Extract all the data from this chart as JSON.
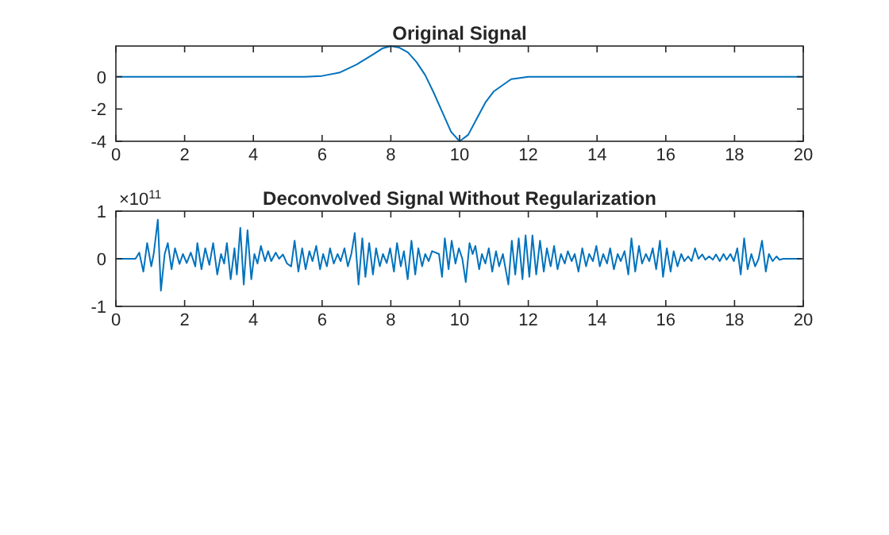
{
  "chart_data": [
    {
      "type": "line",
      "title": "Original Signal",
      "xlim": [
        0,
        20
      ],
      "xticks": [
        0,
        2,
        4,
        6,
        8,
        10,
        12,
        14,
        16,
        18,
        20
      ],
      "ylim": [
        -4,
        1.9
      ],
      "yticks": [
        -4,
        -2,
        0
      ],
      "grid": false,
      "series": [
        {
          "color": "#0072bd",
          "x": [
            0,
            2,
            4,
            5.5,
            6,
            6.5,
            7,
            7.5,
            7.75,
            8,
            8.25,
            8.5,
            8.75,
            9,
            9.25,
            9.5,
            9.75,
            10,
            10.25,
            10.5,
            10.75,
            11,
            11.5,
            12,
            14,
            16,
            18,
            20
          ],
          "values": [
            0,
            0,
            0,
            0,
            0.05,
            0.25,
            0.75,
            1.4,
            1.75,
            1.9,
            1.8,
            1.5,
            0.9,
            0.1,
            -1,
            -2.2,
            -3.4,
            -4,
            -3.6,
            -2.6,
            -1.6,
            -0.9,
            -0.15,
            0,
            0,
            0,
            0,
            0
          ]
        }
      ]
    },
    {
      "type": "line",
      "title": "Deconvolved Signal Without Regularization",
      "annotations": [
        "×10$^{11}$"
      ],
      "xlim": [
        0,
        20
      ],
      "xticks": [
        0,
        2,
        4,
        6,
        8,
        10,
        12,
        14,
        16,
        18,
        20
      ],
      "ylim": [
        -1,
        1
      ],
      "yticks": [
        -1,
        0,
        1
      ],
      "grid": false,
      "series": [
        {
          "color": "#0072bd",
          "x": [
            0,
            0.57,
            0.68,
            0.8,
            0.91,
            1.03,
            1.1,
            1.22,
            1.31,
            1.42,
            1.51,
            1.62,
            1.72,
            1.85,
            1.95,
            2.06,
            2.18,
            2.31,
            2.37,
            2.49,
            2.6,
            2.72,
            2.83,
            2.95,
            3.06,
            3.15,
            3.23,
            3.34,
            3.45,
            3.52,
            3.62,
            3.72,
            3.83,
            3.94,
            4.03,
            4.12,
            4.22,
            4.34,
            4.43,
            4.52,
            4.65,
            4.75,
            4.86,
            4.98,
            5.1,
            5.2,
            5.31,
            5.42,
            5.52,
            5.63,
            5.72,
            5.83,
            5.94,
            6.03,
            6.14,
            6.23,
            6.34,
            6.45,
            6.54,
            6.65,
            6.75,
            6.85,
            6.95,
            7.06,
            7.17,
            7.26,
            7.37,
            7.48,
            7.57,
            7.68,
            7.77,
            7.88,
            7.98,
            8.09,
            8.18,
            8.29,
            8.38,
            8.49,
            8.6,
            8.71,
            8.8,
            8.91,
            9,
            9.1,
            9.2,
            9.4,
            9.49,
            9.57,
            9.68,
            9.77,
            9.88,
            9.98,
            10.08,
            10.18,
            10.29,
            10.38,
            10.46,
            10.57,
            10.65,
            10.75,
            10.85,
            10.95,
            11.06,
            11.15,
            11.26,
            11.42,
            11.52,
            11.62,
            11.72,
            11.83,
            11.92,
            12.03,
            12.12,
            12.23,
            12.34,
            12.45,
            12.54,
            12.65,
            12.75,
            12.85,
            12.95,
            13.06,
            13.15,
            13.26,
            13.35,
            13.46,
            13.57,
            13.68,
            13.77,
            13.88,
            13.98,
            14.08,
            14.18,
            14.29,
            14.38,
            14.49,
            14.6,
            14.69,
            14.8,
            14.91,
            15,
            15.11,
            15.22,
            15.31,
            15.42,
            15.52,
            15.62,
            15.72,
            15.83,
            15.92,
            16.03,
            16.14,
            16.23,
            16.34,
            16.45,
            16.54,
            16.65,
            16.75,
            16.85,
            16.95,
            17.06,
            17.15,
            17.26,
            17.37,
            17.46,
            17.57,
            17.68,
            17.77,
            17.88,
            17.98,
            18.08,
            18.18,
            18.28,
            18.38,
            18.49,
            18.6,
            18.7,
            18.8,
            18.91,
            19,
            19.11,
            19.22,
            19.31,
            19.42,
            19.95
          ],
          "values": [
            0,
            0,
            0.13,
            -0.27,
            0.33,
            -0.16,
            0.1,
            0.82,
            -0.67,
            0.1,
            0.33,
            -0.22,
            0.22,
            -0.11,
            0.1,
            -0.09,
            0.13,
            -0.16,
            0.33,
            -0.22,
            0.22,
            -0.13,
            0.33,
            -0.33,
            0.1,
            -0.1,
            0.33,
            -0.43,
            0.22,
            -0.33,
            0.65,
            -0.54,
            0.6,
            -0.43,
            0.1,
            -0.1,
            0.27,
            -0.05,
            0.16,
            -0.05,
            0.13,
            0,
            0.09,
            -0.1,
            -0.16,
            0.38,
            -0.27,
            0.22,
            -0.22,
            0.16,
            -0.05,
            0.27,
            -0.22,
            0.1,
            -0.16,
            0.22,
            -0.1,
            0.1,
            -0.05,
            0.22,
            -0.16,
            0.1,
            0.54,
            -0.54,
            0.43,
            -0.38,
            0.33,
            -0.33,
            0.22,
            -0.16,
            0.1,
            -0.09,
            0.22,
            -0.27,
            0.33,
            -0.16,
            0.16,
            -0.43,
            0.38,
            -0.33,
            0.22,
            -0.16,
            0.1,
            -0.05,
            0.16,
            0.1,
            -0.38,
            0.43,
            -0.22,
            0.38,
            -0.1,
            0.22,
            0,
            -0.49,
            0.33,
            0.1,
            0.27,
            -0.22,
            0.1,
            -0.1,
            0.22,
            -0.27,
            0.16,
            -0.16,
            0.1,
            -0.54,
            0.38,
            -0.33,
            0.43,
            -0.43,
            0.49,
            -0.38,
            0.49,
            -0.33,
            0.38,
            -0.27,
            0.22,
            -0.16,
            0.27,
            -0.22,
            0.1,
            -0.1,
            0.16,
            -0.05,
            0.1,
            -0.27,
            0.22,
            -0.16,
            0.1,
            -0.05,
            0.27,
            -0.16,
            0.1,
            -0.1,
            0.22,
            -0.22,
            0.1,
            -0.05,
            0.16,
            -0.33,
            0.43,
            -0.27,
            0.27,
            -0.1,
            0.1,
            -0.05,
            0.22,
            -0.22,
            0.38,
            -0.38,
            0.22,
            -0.27,
            0.16,
            -0.16,
            0.1,
            -0.05,
            0.05,
            -0.05,
            0.22,
            0,
            0.09,
            -0.02,
            0.05,
            -0.02,
            0.09,
            -0.05,
            0.1,
            -0.02,
            0.1,
            -0.05,
            0.22,
            -0.33,
            0.43,
            -0.22,
            0.1,
            -0.16,
            0,
            0.38,
            -0.27,
            0.1,
            -0.05,
            0.05,
            -0.02,
            0,
            0
          ]
        }
      ]
    }
  ]
}
